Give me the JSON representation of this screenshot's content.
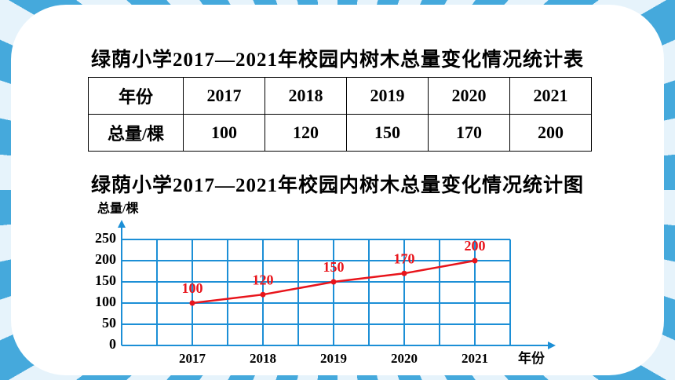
{
  "table_title": "绿荫小学2017—2021年校园内树木总量变化情况统计表",
  "table": {
    "header": [
      "年份",
      "2017",
      "2018",
      "2019",
      "2020",
      "2021"
    ],
    "rows": [
      [
        "总量/棵",
        100,
        120,
        150,
        170,
        200
      ]
    ]
  },
  "chart_data": {
    "type": "line",
    "title": "绿荫小学2017—2021年校园内树木总量变化情况统计图",
    "y_label": "总量/棵",
    "x_label": "年份",
    "categories": [
      "2017",
      "2018",
      "2019",
      "2020",
      "2021"
    ],
    "values": [
      100,
      120,
      150,
      170,
      200
    ],
    "color": "#e8141b",
    "ylim": [
      0,
      250
    ],
    "yticks": [
      0,
      50,
      100,
      150,
      200,
      250
    ],
    "grid": true,
    "grid_color": "#1c8fd6"
  }
}
